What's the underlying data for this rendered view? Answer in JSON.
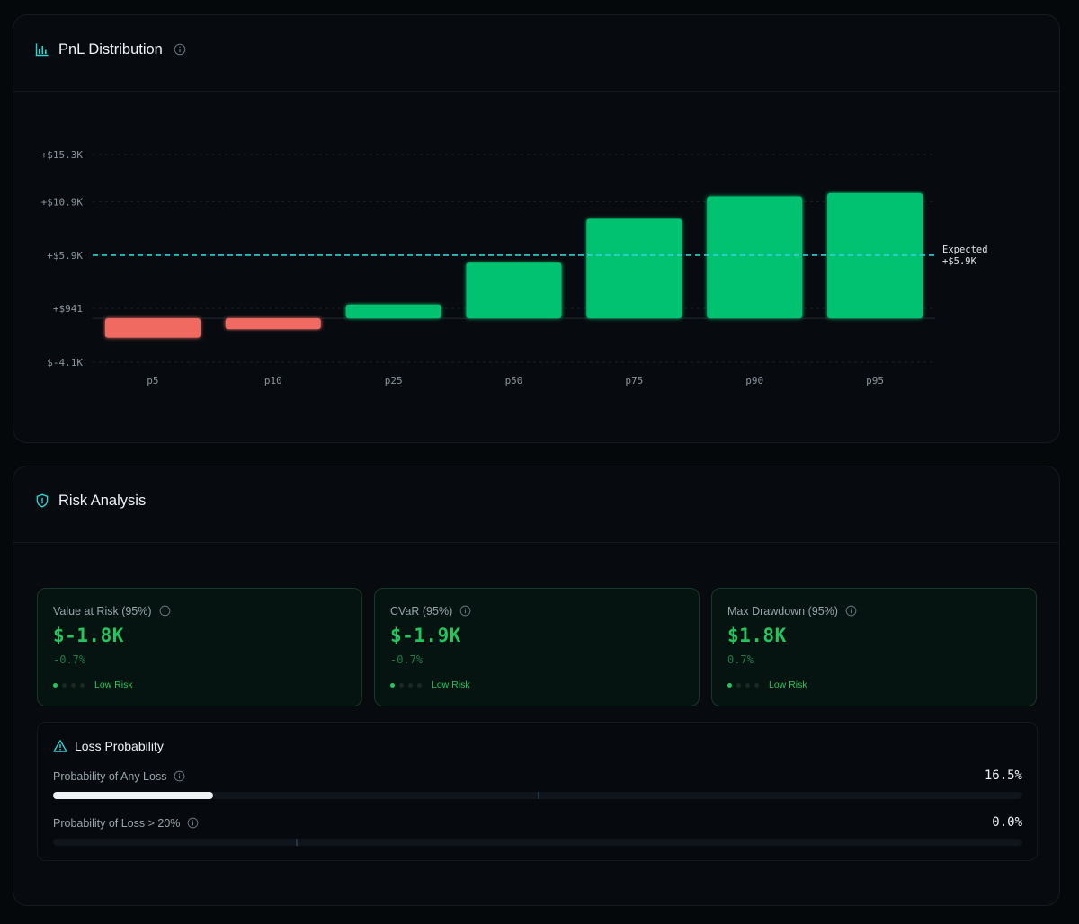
{
  "pnl": {
    "title": "PnL Distribution",
    "icon": "bar-chart-icon",
    "info_icon": "info-icon"
  },
  "chart_data": {
    "type": "bar",
    "categories": [
      "p5",
      "p10",
      "p25",
      "p50",
      "p75",
      "p90",
      "p95"
    ],
    "values": [
      -1800,
      -1000,
      1300,
      5200,
      9300,
      11400,
      11700
    ],
    "y_ticks": [
      {
        "value": 15300,
        "label": "+$15.3K"
      },
      {
        "value": 10900,
        "label": "+$10.9K"
      },
      {
        "value": 5900,
        "label": "+$5.9K"
      },
      {
        "value": 941,
        "label": "+$941"
      },
      {
        "value": -4100,
        "label": "$-4.1K"
      }
    ],
    "ylim": [
      -4100,
      15300
    ],
    "expected": {
      "value": 5900,
      "label_line1": "Expected",
      "label_line2": "+$5.9K"
    },
    "colors": {
      "positive": "#00c26f",
      "negative": "#f06b62",
      "expected_line": "#2dd4d4"
    },
    "grid": true
  },
  "risk": {
    "title": "Risk Analysis",
    "icon": "shield-icon",
    "metrics": [
      {
        "label": "Value at Risk (95%)",
        "value": "$-1.8K",
        "pct": "-0.7%",
        "risk_level": "Low Risk",
        "level": 1
      },
      {
        "label": "CVaR (95%)",
        "value": "$-1.9K",
        "pct": "-0.7%",
        "risk_level": "Low Risk",
        "level": 1
      },
      {
        "label": "Max Drawdown (95%)",
        "value": "$1.8K",
        "pct": "0.7%",
        "risk_level": "Low Risk",
        "level": 1
      }
    ]
  },
  "loss": {
    "title": "Loss Probability",
    "icon": "warning-icon",
    "items": [
      {
        "label": "Probability of Any Loss",
        "value": "16.5%",
        "fraction": 0.165,
        "marker": 0.5
      },
      {
        "label": "Probability of Loss > 20%",
        "value": "0.0%",
        "fraction": 0.0,
        "marker": 0.25
      }
    ]
  },
  "colors": {
    "accent": "#2dd4d4",
    "success": "#22c55e"
  }
}
